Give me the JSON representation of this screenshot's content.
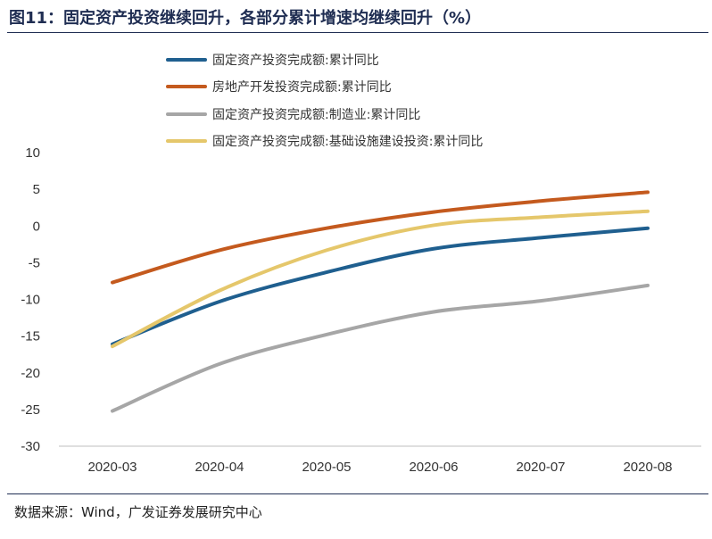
{
  "title": "图11：固定资产投资继续回升，各部分累计增速均继续回升（%）",
  "source": "数据来源：Wind，广发证券发展研究中心",
  "chart_data": {
    "type": "line",
    "title": "",
    "xlabel": "",
    "ylabel": "",
    "categories": [
      "2020-03",
      "2020-04",
      "2020-05",
      "2020-06",
      "2020-07",
      "2020-08"
    ],
    "ylim": [
      -30,
      10
    ],
    "yticks": [
      10,
      5,
      0,
      -5,
      -10,
      -15,
      -20,
      -25,
      -30
    ],
    "grid": false,
    "legend_position": "top",
    "series": [
      {
        "name": "固定资产投资完成额:累计同比",
        "color": "#1f5f8f",
        "values": [
          -16.1,
          -10.3,
          -6.3,
          -3.1,
          -1.6,
          -0.3
        ]
      },
      {
        "name": "房地产开发投资完成额:累计同比",
        "color": "#c45a1e",
        "values": [
          -7.7,
          -3.3,
          -0.3,
          1.9,
          3.4,
          4.6
        ]
      },
      {
        "name": "固定资产投资完成额:制造业:累计同比",
        "color": "#a6a6a6",
        "values": [
          -25.2,
          -18.8,
          -14.8,
          -11.7,
          -10.2,
          -8.1
        ]
      },
      {
        "name": "固定资产投资完成额:基础设施建设投资:累计同比",
        "color": "#e5c76b",
        "values": [
          -16.4,
          -8.8,
          -3.3,
          0.1,
          1.2,
          2.0
        ]
      }
    ]
  }
}
